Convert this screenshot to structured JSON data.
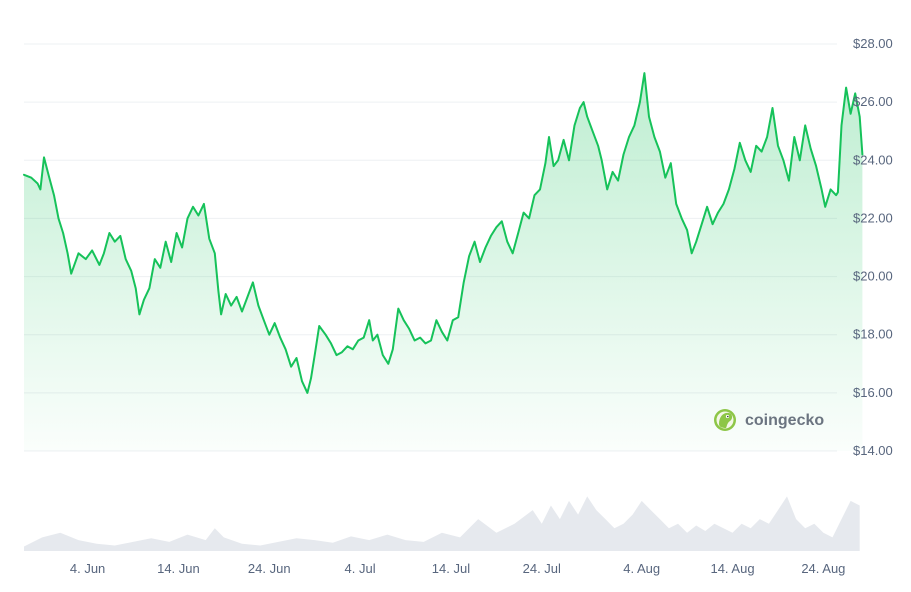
{
  "chart_data": {
    "type": "area",
    "title": "",
    "xlabel": "",
    "ylabel": "",
    "ylim": [
      14,
      28
    ],
    "yticks": [
      "$28.00",
      "$26.00",
      "$24.00",
      "$22.00",
      "$20.00",
      "$18.00",
      "$16.00",
      "$14.00"
    ],
    "ytick_values": [
      28,
      26,
      24,
      22,
      20,
      18,
      16,
      14
    ],
    "xticks": [
      "4. Jun",
      "14. Jun",
      "24. Jun",
      "4. Jul",
      "14. Jul",
      "24. Jul",
      "4. Aug",
      "14. Aug",
      "24. Aug"
    ],
    "xtick_days": [
      4,
      14,
      24,
      34,
      44,
      54,
      65,
      75,
      85
    ],
    "xlim_days": [
      -3,
      86.5
    ],
    "line_color": "#16c25a",
    "fill_color": "#16c25a",
    "volume_color": "#e6e9ee",
    "series": [
      {
        "values": [
          [
            -3,
            23.5
          ],
          [
            -2.2,
            23.4
          ],
          [
            -1.5,
            23.2
          ],
          [
            -1.2,
            23.0
          ],
          [
            -0.8,
            24.1
          ],
          [
            -0.3,
            23.5
          ],
          [
            0.3,
            22.8
          ],
          [
            0.8,
            22.0
          ],
          [
            1.3,
            21.5
          ],
          [
            1.8,
            20.8
          ],
          [
            2.2,
            20.1
          ],
          [
            3.0,
            20.8
          ],
          [
            3.8,
            20.6
          ],
          [
            4.5,
            20.9
          ],
          [
            5.3,
            20.4
          ],
          [
            5.8,
            20.8
          ],
          [
            6.4,
            21.5
          ],
          [
            7.0,
            21.2
          ],
          [
            7.6,
            21.4
          ],
          [
            8.2,
            20.6
          ],
          [
            8.8,
            20.2
          ],
          [
            9.3,
            19.6
          ],
          [
            9.7,
            18.7
          ],
          [
            10.2,
            19.2
          ],
          [
            10.8,
            19.6
          ],
          [
            11.4,
            20.6
          ],
          [
            12.0,
            20.3
          ],
          [
            12.6,
            21.2
          ],
          [
            13.2,
            20.5
          ],
          [
            13.8,
            21.5
          ],
          [
            14.4,
            21.0
          ],
          [
            15.0,
            22.0
          ],
          [
            15.6,
            22.4
          ],
          [
            16.2,
            22.1
          ],
          [
            16.8,
            22.5
          ],
          [
            17.4,
            21.3
          ],
          [
            18.0,
            20.8
          ],
          [
            18.4,
            19.5
          ],
          [
            18.7,
            18.7
          ],
          [
            19.2,
            19.4
          ],
          [
            19.8,
            19.0
          ],
          [
            20.4,
            19.3
          ],
          [
            21.0,
            18.8
          ],
          [
            21.6,
            19.3
          ],
          [
            22.2,
            19.8
          ],
          [
            22.8,
            19.0
          ],
          [
            23.4,
            18.5
          ],
          [
            24.0,
            18.0
          ],
          [
            24.6,
            18.4
          ],
          [
            25.2,
            17.9
          ],
          [
            25.8,
            17.5
          ],
          [
            26.4,
            16.9
          ],
          [
            27.0,
            17.2
          ],
          [
            27.6,
            16.4
          ],
          [
            28.2,
            16.0
          ],
          [
            28.6,
            16.5
          ],
          [
            29.0,
            17.3
          ],
          [
            29.5,
            18.3
          ],
          [
            30.2,
            18.0
          ],
          [
            30.8,
            17.7
          ],
          [
            31.4,
            17.3
          ],
          [
            32.0,
            17.4
          ],
          [
            32.6,
            17.6
          ],
          [
            33.2,
            17.5
          ],
          [
            33.8,
            17.8
          ],
          [
            34.4,
            17.9
          ],
          [
            35.0,
            18.5
          ],
          [
            35.4,
            17.8
          ],
          [
            35.9,
            18.0
          ],
          [
            36.5,
            17.3
          ],
          [
            37.1,
            17.0
          ],
          [
            37.6,
            17.5
          ],
          [
            38.2,
            18.9
          ],
          [
            38.8,
            18.5
          ],
          [
            39.4,
            18.2
          ],
          [
            40.0,
            17.8
          ],
          [
            40.6,
            17.9
          ],
          [
            41.2,
            17.7
          ],
          [
            41.8,
            17.8
          ],
          [
            42.4,
            18.5
          ],
          [
            43.0,
            18.1
          ],
          [
            43.6,
            17.8
          ],
          [
            44.2,
            18.5
          ],
          [
            44.8,
            18.6
          ],
          [
            45.4,
            19.8
          ],
          [
            46.0,
            20.7
          ],
          [
            46.6,
            21.2
          ],
          [
            47.2,
            20.5
          ],
          [
            47.8,
            21.0
          ],
          [
            48.4,
            21.4
          ],
          [
            49.0,
            21.7
          ],
          [
            49.6,
            21.9
          ],
          [
            50.2,
            21.2
          ],
          [
            50.8,
            20.8
          ],
          [
            51.4,
            21.5
          ],
          [
            52.0,
            22.2
          ],
          [
            52.6,
            22.0
          ],
          [
            53.2,
            22.8
          ],
          [
            53.8,
            23.0
          ],
          [
            54.4,
            23.9
          ],
          [
            54.8,
            24.8
          ],
          [
            55.3,
            23.8
          ],
          [
            55.8,
            24.0
          ],
          [
            56.4,
            24.7
          ],
          [
            57.0,
            24.0
          ],
          [
            57.6,
            25.2
          ],
          [
            58.2,
            25.8
          ],
          [
            58.6,
            26.0
          ],
          [
            59.0,
            25.5
          ],
          [
            59.6,
            25.0
          ],
          [
            60.2,
            24.5
          ],
          [
            60.6,
            24.0
          ],
          [
            61.2,
            23.0
          ],
          [
            61.8,
            23.6
          ],
          [
            62.4,
            23.3
          ],
          [
            63.0,
            24.2
          ],
          [
            63.6,
            24.8
          ],
          [
            64.2,
            25.2
          ],
          [
            64.8,
            26.0
          ],
          [
            65.3,
            27.0
          ],
          [
            65.8,
            25.5
          ],
          [
            66.4,
            24.8
          ],
          [
            67.0,
            24.3
          ],
          [
            67.6,
            23.4
          ],
          [
            68.2,
            23.9
          ],
          [
            68.8,
            22.5
          ],
          [
            69.4,
            22.0
          ],
          [
            70.0,
            21.6
          ],
          [
            70.5,
            20.8
          ],
          [
            71.0,
            21.2
          ],
          [
            71.6,
            21.8
          ],
          [
            72.2,
            22.4
          ],
          [
            72.8,
            21.8
          ],
          [
            73.4,
            22.2
          ],
          [
            74.0,
            22.5
          ],
          [
            74.6,
            23.0
          ],
          [
            75.2,
            23.7
          ],
          [
            75.8,
            24.6
          ],
          [
            76.4,
            24.0
          ],
          [
            77.0,
            23.6
          ],
          [
            77.6,
            24.5
          ],
          [
            78.2,
            24.3
          ],
          [
            78.8,
            24.8
          ],
          [
            79.4,
            25.8
          ],
          [
            80.0,
            24.5
          ],
          [
            80.6,
            24.0
          ],
          [
            81.2,
            23.3
          ],
          [
            81.8,
            24.8
          ],
          [
            82.4,
            24.0
          ],
          [
            83.0,
            25.2
          ],
          [
            83.6,
            24.4
          ],
          [
            84.2,
            23.8
          ],
          [
            84.8,
            23.0
          ],
          [
            85.2,
            22.4
          ],
          [
            85.8,
            23.0
          ],
          [
            86.4,
            22.8
          ],
          [
            86.6,
            22.9
          ],
          [
            87.0,
            25.2
          ],
          [
            87.5,
            26.5
          ],
          [
            88.0,
            25.6
          ],
          [
            88.5,
            26.3
          ],
          [
            89.0,
            25.5
          ],
          [
            89.3,
            24.2
          ]
        ]
      }
    ],
    "volume": [
      [
        -3,
        0.05
      ],
      [
        -1,
        0.15
      ],
      [
        1,
        0.2
      ],
      [
        3,
        0.12
      ],
      [
        5,
        0.08
      ],
      [
        7,
        0.06
      ],
      [
        9,
        0.1
      ],
      [
        11,
        0.14
      ],
      [
        13,
        0.1
      ],
      [
        15,
        0.18
      ],
      [
        17,
        0.12
      ],
      [
        18,
        0.25
      ],
      [
        19,
        0.15
      ],
      [
        21,
        0.08
      ],
      [
        23,
        0.06
      ],
      [
        25,
        0.1
      ],
      [
        27,
        0.14
      ],
      [
        29,
        0.12
      ],
      [
        31,
        0.09
      ],
      [
        33,
        0.16
      ],
      [
        35,
        0.12
      ],
      [
        37,
        0.18
      ],
      [
        39,
        0.12
      ],
      [
        41,
        0.1
      ],
      [
        43,
        0.2
      ],
      [
        45,
        0.15
      ],
      [
        47,
        0.35
      ],
      [
        49,
        0.2
      ],
      [
        51,
        0.3
      ],
      [
        53,
        0.45
      ],
      [
        54,
        0.3
      ],
      [
        55,
        0.5
      ],
      [
        56,
        0.35
      ],
      [
        57,
        0.55
      ],
      [
        58,
        0.4
      ],
      [
        59,
        0.6
      ],
      [
        60,
        0.45
      ],
      [
        61,
        0.35
      ],
      [
        62,
        0.25
      ],
      [
        63,
        0.3
      ],
      [
        64,
        0.4
      ],
      [
        65,
        0.55
      ],
      [
        66,
        0.45
      ],
      [
        67,
        0.35
      ],
      [
        68,
        0.25
      ],
      [
        69,
        0.3
      ],
      [
        70,
        0.2
      ],
      [
        71,
        0.28
      ],
      [
        72,
        0.22
      ],
      [
        73,
        0.3
      ],
      [
        74,
        0.25
      ],
      [
        75,
        0.2
      ],
      [
        76,
        0.3
      ],
      [
        77,
        0.25
      ],
      [
        78,
        0.35
      ],
      [
        79,
        0.3
      ],
      [
        80,
        0.45
      ],
      [
        81,
        0.6
      ],
      [
        82,
        0.35
      ],
      [
        83,
        0.25
      ],
      [
        84,
        0.3
      ],
      [
        85,
        0.2
      ],
      [
        86,
        0.15
      ],
      [
        87,
        0.35
      ],
      [
        88,
        0.55
      ],
      [
        89,
        0.5
      ]
    ]
  },
  "watermark": {
    "label": "coingecko",
    "icon": "coingecko-gecko-icon"
  }
}
